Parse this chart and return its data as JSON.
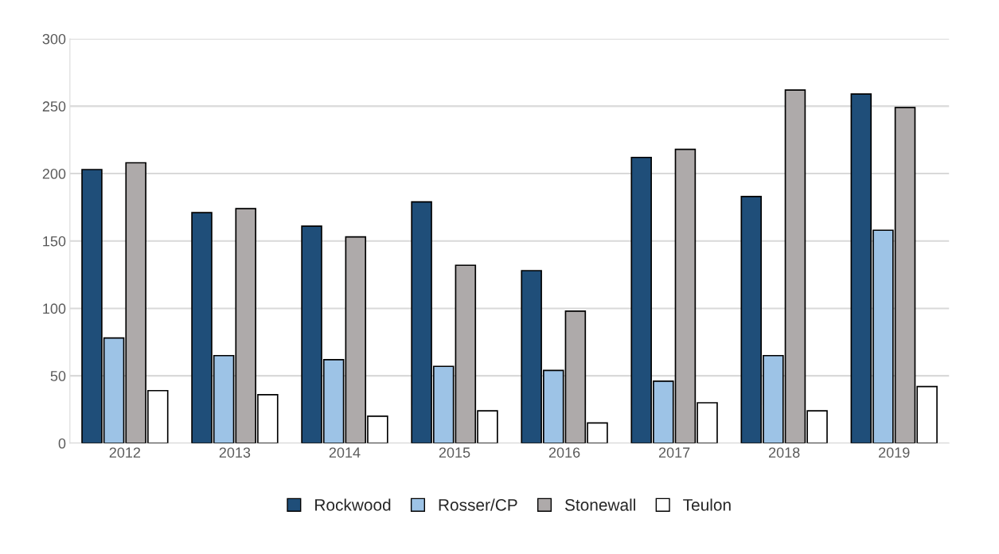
{
  "chart_data": {
    "type": "bar",
    "categories": [
      "2012",
      "2013",
      "2014",
      "2015",
      "2016",
      "2017",
      "2018",
      "2019"
    ],
    "series": [
      {
        "name": "Rockwood",
        "color": "#1f4e79",
        "values": [
          203,
          171,
          161,
          179,
          128,
          212,
          183,
          259
        ]
      },
      {
        "name": "Rosser/CP",
        "color": "#9dc3e6",
        "values": [
          78,
          65,
          62,
          57,
          54,
          46,
          65,
          158
        ]
      },
      {
        "name": "Stonewall",
        "color": "#aeaaaa",
        "values": [
          208,
          174,
          153,
          132,
          98,
          218,
          262,
          249
        ]
      },
      {
        "name": "Teulon",
        "color": "#ffffff",
        "values": [
          39,
          36,
          20,
          24,
          15,
          30,
          24,
          42
        ]
      }
    ],
    "ylim": [
      0,
      300
    ],
    "yticks": [
      0,
      50,
      100,
      150,
      200,
      250,
      300
    ],
    "grid": "y",
    "legend": "bottom"
  }
}
